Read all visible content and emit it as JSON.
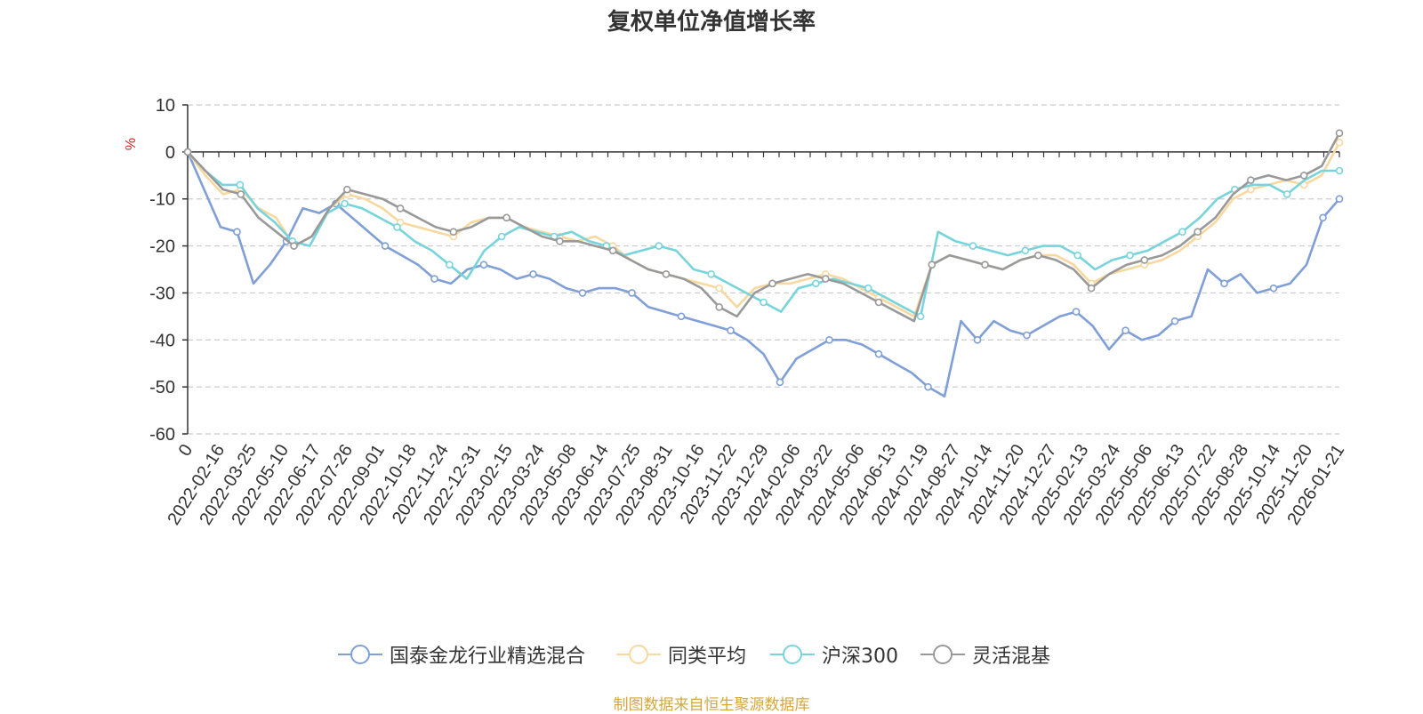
{
  "chart_data": {
    "type": "line",
    "title": "复权单位净值增长率",
    "ylabel": "%",
    "ylim": [
      -60,
      10
    ],
    "yticks": [
      10,
      0,
      -10,
      -20,
      -30,
      -40,
      -50,
      -60
    ],
    "x_tick_labels": [
      "0",
      "2022-02-16",
      "2022-03-25",
      "2022-05-10",
      "2022-06-17",
      "2022-07-26",
      "2022-09-01",
      "2022-10-18",
      "2022-11-24",
      "2022-12-31",
      "2023-02-15",
      "2023-03-24",
      "2023-05-08",
      "2023-06-14",
      "2023-07-25",
      "2023-08-31",
      "2023-10-16",
      "2023-11-22",
      "2023-12-29",
      "2024-02-06",
      "2024-03-22",
      "2024-05-06",
      "2024-06-13",
      "2024-07-19",
      "2024-08-27",
      "2024-10-14",
      "2024-11-20",
      "2024-12-27",
      "2025-02-13",
      "2025-03-24",
      "2025-05-06",
      "2025-06-13",
      "2025-07-22",
      "2025-08-28",
      "2025-10-14",
      "2025-11-20",
      "2026-01-21"
    ],
    "grid": true,
    "legend_position": "bottom",
    "series": [
      {
        "name": "国泰金龙行业精选混合",
        "color": "#7f9fd6",
        "values": [
          0,
          -8,
          -16,
          -17,
          -28,
          -24,
          -19,
          -12,
          -13,
          -11,
          -14,
          -17,
          -20,
          -22,
          -24,
          -27,
          -28,
          -25,
          -24,
          -25,
          -27,
          -26,
          -27,
          -29,
          -30,
          -29,
          -29,
          -30,
          -33,
          -34,
          -35,
          -36,
          -37,
          -38,
          -40,
          -43,
          -49,
          -44,
          -42,
          -40,
          -40,
          -41,
          -43,
          -45,
          -47,
          -50,
          -52,
          -36,
          -40,
          -36,
          -38,
          -39,
          -37,
          -35,
          -34,
          -37,
          -42,
          -38,
          -40,
          -39,
          -36,
          -35,
          -25,
          -28,
          -26,
          -30,
          -29,
          -28,
          -24,
          -14,
          -10
        ]
      },
      {
        "name": "同类平均",
        "color": "#f9d8a0",
        "values": [
          0,
          -5,
          -9,
          -8,
          -12,
          -14,
          -20,
          -18,
          -12,
          -9,
          -10,
          -12,
          -15,
          -16,
          -17,
          -18,
          -15,
          -14,
          -14,
          -16,
          -17,
          -18,
          -19,
          -18,
          -20,
          -23,
          -25,
          -26,
          -27,
          -28,
          -29,
          -33,
          -29,
          -28,
          -28,
          -27,
          -26,
          -27,
          -29,
          -31,
          -33,
          -35,
          -24,
          -22,
          -23,
          -24,
          -25,
          -23,
          -22,
          -22,
          -24,
          -28,
          -26,
          -25,
          -24,
          -23,
          -21,
          -18,
          -15,
          -10,
          -8,
          -7,
          -6,
          -7,
          -5,
          2
        ]
      },
      {
        "name": "沪深300",
        "color": "#77d4db",
        "values": [
          0,
          -4,
          -7,
          -7,
          -12,
          -15,
          -19,
          -20,
          -13,
          -11,
          -12,
          -14,
          -16,
          -19,
          -21,
          -24,
          -27,
          -21,
          -18,
          -16,
          -17,
          -18,
          -17,
          -19,
          -20,
          -22,
          -21,
          -20,
          -21,
          -25,
          -26,
          -28,
          -30,
          -32,
          -34,
          -29,
          -28,
          -27,
          -28,
          -29,
          -31,
          -33,
          -35,
          -17,
          -19,
          -20,
          -21,
          -22,
          -21,
          -20,
          -20,
          -22,
          -25,
          -23,
          -22,
          -21,
          -19,
          -17,
          -14,
          -10,
          -8,
          -7,
          -7,
          -9,
          -6,
          -4,
          -4
        ]
      },
      {
        "name": "灵活混基",
        "color": "#999999",
        "values": [
          0,
          -4,
          -8,
          -9,
          -14,
          -17,
          -20,
          -18,
          -12,
          -8,
          -9,
          -10,
          -12,
          -14,
          -16,
          -17,
          -16,
          -14,
          -14,
          -16,
          -18,
          -19,
          -19,
          -20,
          -21,
          -23,
          -25,
          -26,
          -27,
          -29,
          -33,
          -35,
          -30,
          -28,
          -27,
          -26,
          -27,
          -28,
          -30,
          -32,
          -34,
          -36,
          -24,
          -22,
          -23,
          -24,
          -25,
          -23,
          -22,
          -23,
          -25,
          -29,
          -26,
          -24,
          -23,
          -22,
          -20,
          -17,
          -14,
          -9,
          -6,
          -5,
          -6,
          -5,
          -3,
          4
        ]
      }
    ]
  },
  "source_text": "制图数据来自恒生聚源数据库"
}
